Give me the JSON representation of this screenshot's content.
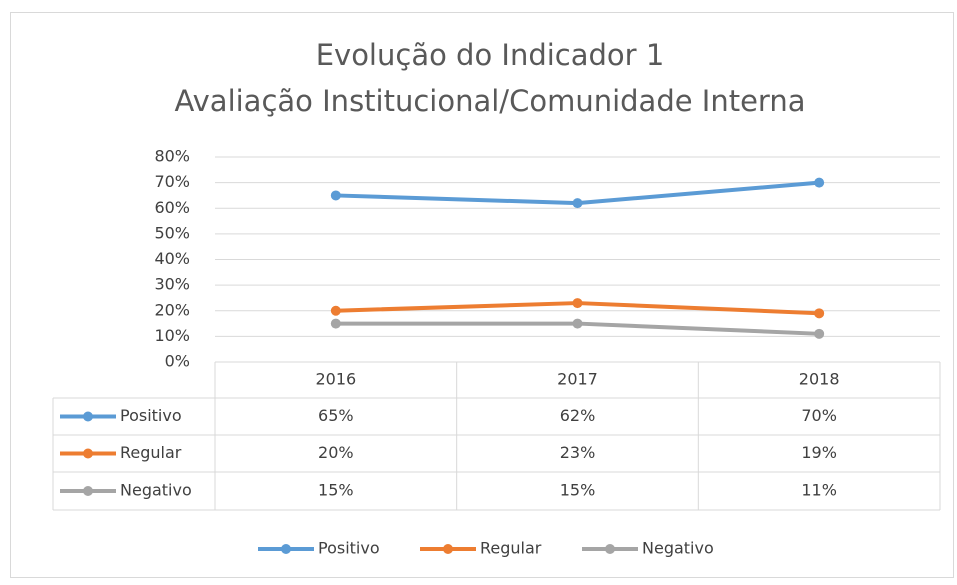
{
  "chart_data": {
    "type": "line",
    "title": "Evolução do Indicador 1",
    "subtitle": "Avaliação Institucional/Comunidade Interna",
    "categories": [
      "2016",
      "2017",
      "2018"
    ],
    "series": [
      {
        "name": "Positivo",
        "color": "#5b9bd5",
        "values": [
          65,
          62,
          70
        ],
        "value_labels": [
          "65%",
          "62%",
          "70%"
        ]
      },
      {
        "name": "Regular",
        "color": "#ed7d31",
        "values": [
          20,
          23,
          19
        ],
        "value_labels": [
          "20%",
          "23%",
          "19%"
        ]
      },
      {
        "name": "Negativo",
        "color": "#a5a5a5",
        "values": [
          15,
          15,
          11
        ],
        "value_labels": [
          "15%",
          "15%",
          "11%"
        ]
      }
    ],
    "ylim": [
      0,
      80
    ],
    "yticks": [
      {
        "value": 0,
        "label": "0%"
      },
      {
        "value": 10,
        "label": "10%"
      },
      {
        "value": 20,
        "label": "20%"
      },
      {
        "value": 30,
        "label": "30%"
      },
      {
        "value": 40,
        "label": "40%"
      },
      {
        "value": 50,
        "label": "50%"
      },
      {
        "value": 60,
        "label": "60%"
      },
      {
        "value": 70,
        "label": "70%"
      },
      {
        "value": 80,
        "label": "80%"
      }
    ],
    "grid": true,
    "legend": "bottom"
  }
}
